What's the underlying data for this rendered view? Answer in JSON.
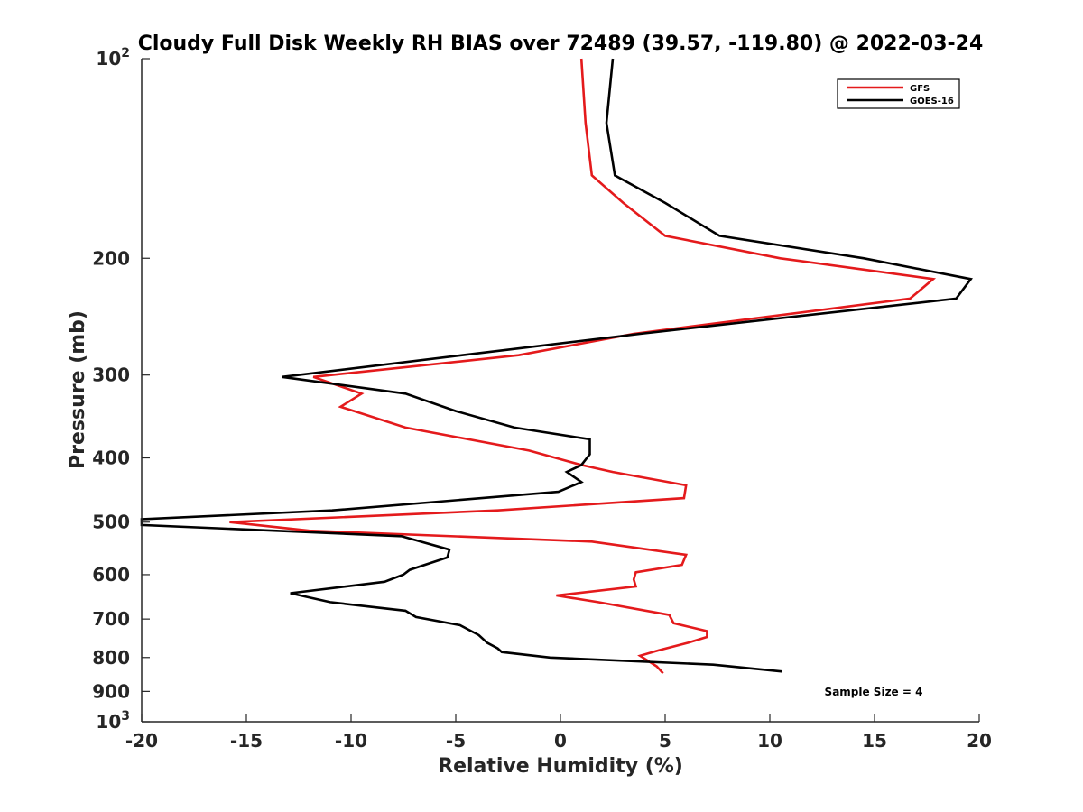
{
  "chart_data": {
    "type": "line",
    "title": "Cloudy Full Disk Weekly RH BIAS over 72489 (39.57, -119.80) @ 2022-03-24",
    "xlabel": "Relative Humidity (%)",
    "ylabel": "Pressure (mb)",
    "xlim": [
      -20,
      20
    ],
    "ylim": [
      100,
      1000
    ],
    "y_scale": "log",
    "y_reversed": true,
    "grid": false,
    "legend_position": "top-right",
    "x_ticks": [
      "-20",
      "-15",
      "-10",
      "-5",
      "0",
      "5",
      "10",
      "15",
      "20"
    ],
    "y_ticks": [
      {
        "value": 100,
        "base": "10",
        "exp": "2"
      },
      {
        "value": 200,
        "label": "200"
      },
      {
        "value": 300,
        "label": "300"
      },
      {
        "value": 400,
        "label": "400"
      },
      {
        "value": 500,
        "label": "500"
      },
      {
        "value": 600,
        "label": "600"
      },
      {
        "value": 700,
        "label": "700"
      },
      {
        "value": 800,
        "label": "800"
      },
      {
        "value": 900,
        "label": "900"
      },
      {
        "value": 1000,
        "base": "10",
        "exp": "3"
      }
    ],
    "series": [
      {
        "name": "GFS",
        "color": "#e41a1c",
        "points": [
          [
            1.0,
            100
          ],
          [
            1.2,
            125
          ],
          [
            1.5,
            150
          ],
          [
            3.0,
            165
          ],
          [
            5.0,
            185
          ],
          [
            10.5,
            200
          ],
          [
            17.8,
            215
          ],
          [
            16.7,
            230
          ],
          [
            3.5,
            260
          ],
          [
            -2.0,
            280
          ],
          [
            -11.8,
            302
          ],
          [
            -9.5,
            320
          ],
          [
            -10.5,
            335
          ],
          [
            -7.4,
            360
          ],
          [
            -1.5,
            390
          ],
          [
            1.0,
            410
          ],
          [
            2.5,
            420
          ],
          [
            6.0,
            440
          ],
          [
            5.9,
            460
          ],
          [
            -3.0,
            480
          ],
          [
            -15.8,
            500
          ],
          [
            -12.0,
            515
          ],
          [
            1.5,
            535
          ],
          [
            6.0,
            560
          ],
          [
            5.8,
            580
          ],
          [
            3.6,
            595
          ],
          [
            3.5,
            610
          ],
          [
            3.6,
            625
          ],
          [
            -0.2,
            645
          ],
          [
            1.8,
            660
          ],
          [
            5.2,
            690
          ],
          [
            5.4,
            710
          ],
          [
            7.0,
            730
          ],
          [
            7.0,
            745
          ],
          [
            6.1,
            760
          ],
          [
            4.7,
            780
          ],
          [
            3.8,
            795
          ],
          [
            4.6,
            825
          ],
          [
            4.9,
            845
          ]
        ]
      },
      {
        "name": "GOES-16",
        "color": "#000000",
        "points": [
          [
            2.5,
            100
          ],
          [
            2.2,
            125
          ],
          [
            2.6,
            150
          ],
          [
            5.0,
            165
          ],
          [
            7.6,
            185
          ],
          [
            14.5,
            200
          ],
          [
            19.6,
            215
          ],
          [
            18.9,
            230
          ],
          [
            3.8,
            260
          ],
          [
            -4.7,
            280
          ],
          [
            -13.3,
            302
          ],
          [
            -7.4,
            320
          ],
          [
            -5.0,
            340
          ],
          [
            -2.2,
            360
          ],
          [
            1.4,
            375
          ],
          [
            1.4,
            395
          ],
          [
            1.0,
            410
          ],
          [
            0.3,
            420
          ],
          [
            1.0,
            435
          ],
          [
            -0.1,
            450
          ],
          [
            -10.9,
            480
          ],
          [
            -20.0,
            495
          ],
          [
            -20.0,
            505
          ],
          [
            -7.6,
            525
          ],
          [
            -5.3,
            550
          ],
          [
            -5.4,
            565
          ],
          [
            -7.2,
            590
          ],
          [
            -7.5,
            600
          ],
          [
            -8.4,
            615
          ],
          [
            -12.9,
            640
          ],
          [
            -11.0,
            660
          ],
          [
            -7.4,
            680
          ],
          [
            -6.9,
            695
          ],
          [
            -4.8,
            715
          ],
          [
            -3.9,
            740
          ],
          [
            -3.5,
            760
          ],
          [
            -3.0,
            775
          ],
          [
            -2.8,
            785
          ],
          [
            -0.5,
            800
          ],
          [
            7.3,
            820
          ],
          [
            10.6,
            840
          ]
        ]
      }
    ],
    "annotations": [
      "Sample Size = 4"
    ]
  }
}
